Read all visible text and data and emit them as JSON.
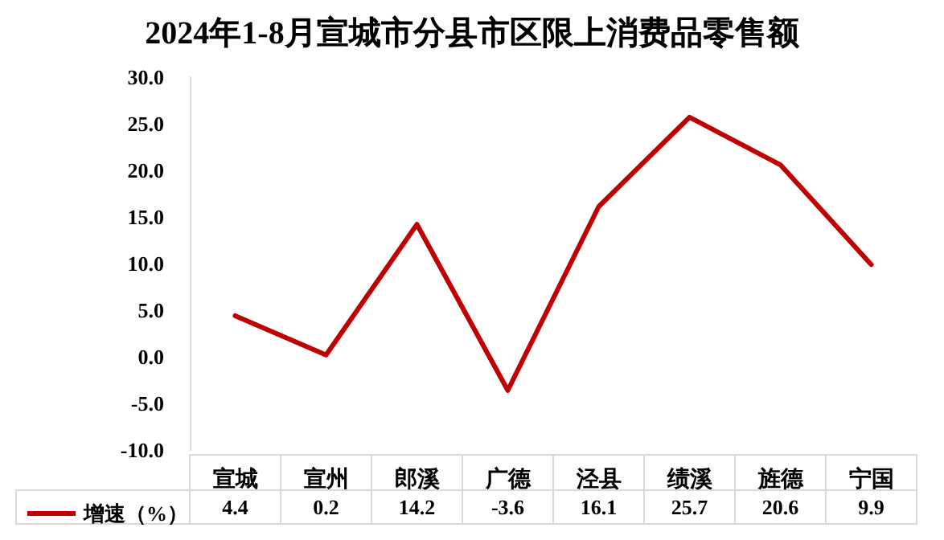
{
  "chart_data": {
    "type": "line",
    "title": "2024年1-8月宣城市分县市区限上消费品零售额",
    "categories": [
      "宣城",
      "宣州",
      "郎溪",
      "广德",
      "泾县",
      "绩溪",
      "旌德",
      "宁国"
    ],
    "series": [
      {
        "name": "增速（%）",
        "color": "#c00000",
        "values": [
          4.4,
          0.2,
          14.2,
          -3.6,
          16.1,
          25.7,
          20.6,
          9.9
        ]
      }
    ],
    "ylim": [
      -10,
      30
    ],
    "yticks": [
      {
        "value": -10,
        "label": "-10.0"
      },
      {
        "value": -5,
        "label": "-5.0"
      },
      {
        "value": 0,
        "label": "0.0"
      },
      {
        "value": 5,
        "label": "5.0"
      },
      {
        "value": 10,
        "label": "10.0"
      },
      {
        "value": 15,
        "label": "15.0"
      },
      {
        "value": 20,
        "label": "20.0"
      },
      {
        "value": 25,
        "label": "25.0"
      },
      {
        "value": 30,
        "label": "30.0"
      }
    ],
    "data_labels": true,
    "legend": "bottom left",
    "marker": "none",
    "line_style": "solid",
    "grid": false
  }
}
